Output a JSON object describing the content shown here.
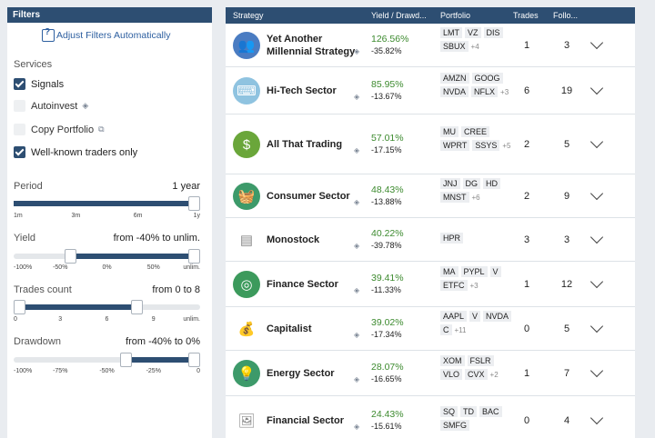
{
  "filters": {
    "title": "Filters",
    "adjust_label": "Adjust Filters Automatically",
    "services_label": "Services",
    "signals": "Signals",
    "autoinvest": "Autoinvest",
    "copy_portfolio": "Copy Portfolio",
    "well_known": "Well-known traders only",
    "signals_checked": true,
    "well_known_checked": true,
    "period": {
      "label": "Period",
      "value": "1 year",
      "ticks": [
        "1m",
        "3m",
        "6m",
        "1y"
      ],
      "selected_fraction": 1.0
    },
    "yield": {
      "label": "Yield",
      "value": "from -40% to unlim.",
      "ticks": [
        "-100%",
        "-50%",
        "0%",
        "50%",
        "unlim."
      ],
      "low_fraction": 0.3,
      "high_fraction": 1.0
    },
    "trades": {
      "label": "Trades count",
      "value": "from 0 to 8",
      "ticks": [
        "0",
        "3",
        "6",
        "9",
        "unlim."
      ],
      "low_fraction": 0.0,
      "high_fraction": 0.66
    },
    "drawdown": {
      "label": "Drawdown",
      "value": "from -40% to 0%",
      "ticks": [
        "-100%",
        "-75%",
        "-50%",
        "-25%",
        "0"
      ],
      "low_fraction": 0.6,
      "high_fraction": 1.0
    }
  },
  "table": {
    "headers": {
      "strategy": "Strategy",
      "yield": "Yield / Drawd...",
      "portfolio": "Portfolio",
      "trades": "Trades",
      "followers": "Follo..."
    },
    "rows": [
      {
        "name": "Yet Another Millennial Strategy",
        "yield": "126.56%",
        "drawdown": "-35.82%",
        "tickers": [
          "LMT",
          "VZ",
          "DIS",
          "SBUX"
        ],
        "more": "+4",
        "trades": "1",
        "followers": "3",
        "avatar_color": "#4a7cc2",
        "avatar_icon": "people-icon"
      },
      {
        "name": "Hi-Tech Sector",
        "yield": "85.95%",
        "drawdown": "-13.67%",
        "tickers": [
          "AMZN",
          "GOOG",
          "NVDA",
          "NFLX"
        ],
        "more": "+3",
        "trades": "6",
        "followers": "19",
        "avatar_color": "#8fc3e0",
        "avatar_icon": "keyboard-icon"
      },
      {
        "name": "All That Trading",
        "yield": "57.01%",
        "drawdown": "-17.15%",
        "tickers": [
          "MU",
          "CREE",
          "WPRT",
          "SSYS"
        ],
        "more": "+5",
        "trades": "2",
        "followers": "5",
        "avatar_color": "#6aa63a",
        "avatar_icon": "money-icon"
      },
      {
        "name": "Consumer Sector",
        "yield": "48.43%",
        "drawdown": "-13.88%",
        "tickers": [
          "JNJ",
          "DG",
          "HD",
          "MNST"
        ],
        "more": "+6",
        "trades": "2",
        "followers": "9",
        "avatar_color": "#3d9a6a",
        "avatar_icon": "basket-icon"
      },
      {
        "name": "Monostock",
        "yield": "40.22%",
        "drawdown": "-39.78%",
        "tickers": [
          "HPR"
        ],
        "more": "",
        "trades": "3",
        "followers": "3",
        "avatar_color": "#ffffff",
        "avatar_icon": "ticket-icon"
      },
      {
        "name": "Finance Sector",
        "yield": "39.41%",
        "drawdown": "-11.33%",
        "tickers": [
          "MA",
          "PYPL",
          "V",
          "ETFC"
        ],
        "more": "+3",
        "trades": "1",
        "followers": "12",
        "avatar_color": "#3c9a5c",
        "avatar_icon": "finance-icon"
      },
      {
        "name": "Capitalist",
        "yield": "39.02%",
        "drawdown": "-17.34%",
        "tickers": [
          "AAPL",
          "V",
          "NVDA",
          "C"
        ],
        "more": "+11",
        "trades": "0",
        "followers": "5",
        "avatar_color": "#ffffff",
        "avatar_icon": "money-bag-icon"
      },
      {
        "name": "Energy Sector",
        "yield": "28.07%",
        "drawdown": "-16.65%",
        "tickers": [
          "XOM",
          "FSLR",
          "VLO",
          "CVX"
        ],
        "more": "+2",
        "trades": "1",
        "followers": "7",
        "avatar_color": "#3d9a6a",
        "avatar_icon": "bulb-icon"
      },
      {
        "name": "Financial Sector",
        "yield": "24.43%",
        "drawdown": "-15.61%",
        "tickers": [
          "SQ",
          "TD",
          "BAC",
          "SMFG"
        ],
        "more": "",
        "trades": "0",
        "followers": "4",
        "avatar_color": "#ffffff",
        "avatar_icon": "image-icon"
      }
    ]
  }
}
